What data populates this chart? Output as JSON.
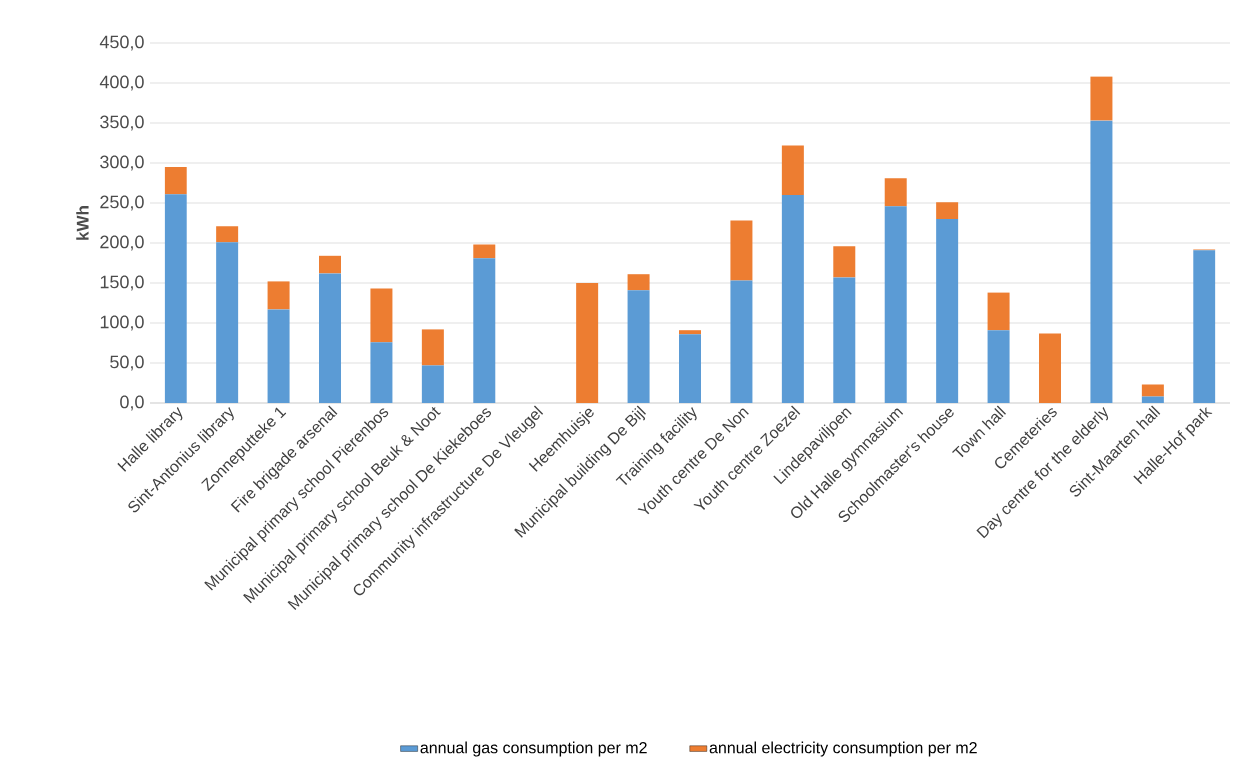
{
  "chart_data": {
    "type": "bar",
    "stacked": true,
    "ylabel": "kWh",
    "categories": [
      "Halle library",
      "Sint-Antonius library",
      "Zonneputteke 1",
      "Fire brigade arsenal",
      "Municipal primary school Pierenbos",
      "Municipal primary school Beuk & Noot",
      "Municipal primary school De Kiekeboes",
      "Community infrastructure De Vleugel",
      "Heemhuisje",
      "Municipal building De Bijl",
      "Training facility",
      "Youth centre De Non",
      "Youth centre Zoezel",
      "Lindepaviljoen",
      "Old Halle gymnasium",
      "Schoolmaster's house",
      "Town hall",
      "Cemeteries",
      "Day centre for the elderly",
      "Sint-Maarten hall",
      "Halle-Hof park"
    ],
    "series": [
      {
        "name": "annual gas consumption per m2",
        "color": "#5b9bd5",
        "values": [
          261,
          201,
          117,
          162,
          76,
          47,
          181,
          0,
          0,
          141,
          86,
          153,
          260,
          157,
          246,
          230,
          91,
          0,
          353,
          8,
          191
        ]
      },
      {
        "name": "annual electricity consumption per m2",
        "color": "#ed7d31",
        "values": [
          34,
          20,
          35,
          22,
          67,
          45,
          17,
          0,
          150,
          20,
          5,
          75,
          62,
          39,
          35,
          21,
          47,
          87,
          55,
          15,
          1
        ]
      }
    ],
    "ylim": [
      0,
      450
    ],
    "yticks": [
      {
        "value": 0,
        "label": "0,0"
      },
      {
        "value": 50,
        "label": "50,0"
      },
      {
        "value": 100,
        "label": "100,0"
      },
      {
        "value": 150,
        "label": "150,0"
      },
      {
        "value": 200,
        "label": "200,0"
      },
      {
        "value": 250,
        "label": "250,0"
      },
      {
        "value": 300,
        "label": "300,0"
      },
      {
        "value": 350,
        "label": "350,0"
      },
      {
        "value": 400,
        "label": "400,0"
      },
      {
        "value": 450,
        "label": "450,0"
      }
    ],
    "grid": "y",
    "legend": "bottom"
  }
}
